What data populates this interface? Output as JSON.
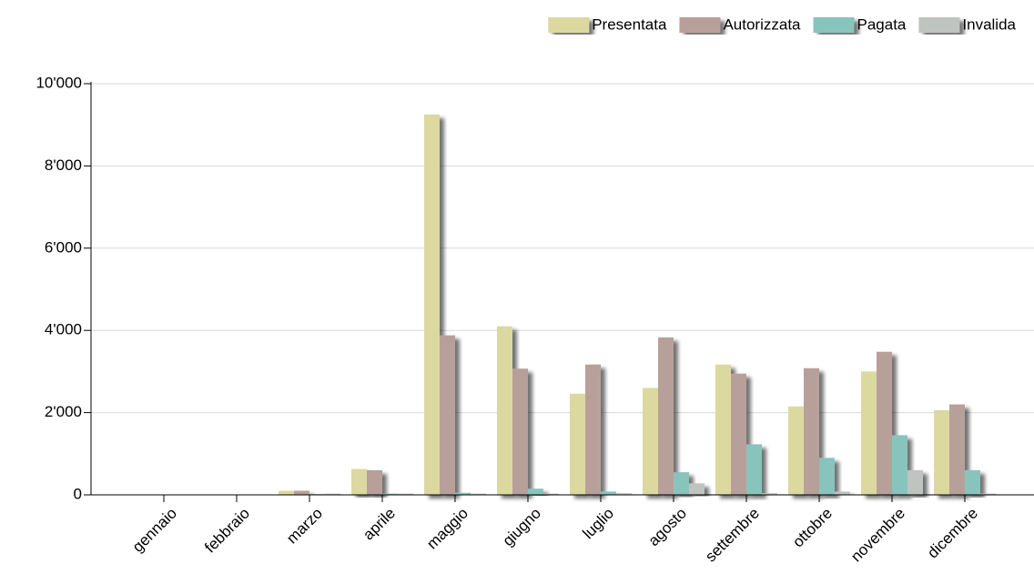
{
  "chart_data": {
    "type": "bar",
    "categories": [
      "gennaio",
      "febbraio",
      "marzo",
      "aprile",
      "maggio",
      "giugno",
      "luglio",
      "agosto",
      "settembre",
      "ottobre",
      "novembre",
      "dicembre"
    ],
    "series": [
      {
        "name": "Presentata",
        "color": "#dcd9a0",
        "values": [
          0,
          0,
          100,
          630,
          9250,
          4100,
          2460,
          2600,
          3170,
          2150,
          3000,
          2060
        ]
      },
      {
        "name": "Autorizzata",
        "color": "#b8a09a",
        "values": [
          0,
          0,
          100,
          600,
          3880,
          3070,
          3170,
          3830,
          2950,
          3080,
          3480,
          2200
        ]
      },
      {
        "name": "Pagata",
        "color": "#88c4bc",
        "values": [
          0,
          0,
          20,
          30,
          50,
          150,
          80,
          550,
          1230,
          900,
          1450,
          600
        ]
      },
      {
        "name": "Invalida",
        "color": "#c0c4c0",
        "values": [
          0,
          0,
          30,
          30,
          30,
          30,
          40,
          280,
          40,
          80,
          600,
          30
        ]
      }
    ],
    "ylim": [
      0,
      10000
    ],
    "yticks": [
      0,
      {
        "value": 2000,
        "label": "2'000"
      },
      {
        "value": 4000,
        "label": "4'000"
      },
      {
        "value": 6000,
        "label": "6'000"
      },
      {
        "value": 8000,
        "label": "8'000"
      },
      {
        "value": 10000,
        "label": "10'000"
      }
    ],
    "grid": true,
    "legend": "top-right"
  }
}
